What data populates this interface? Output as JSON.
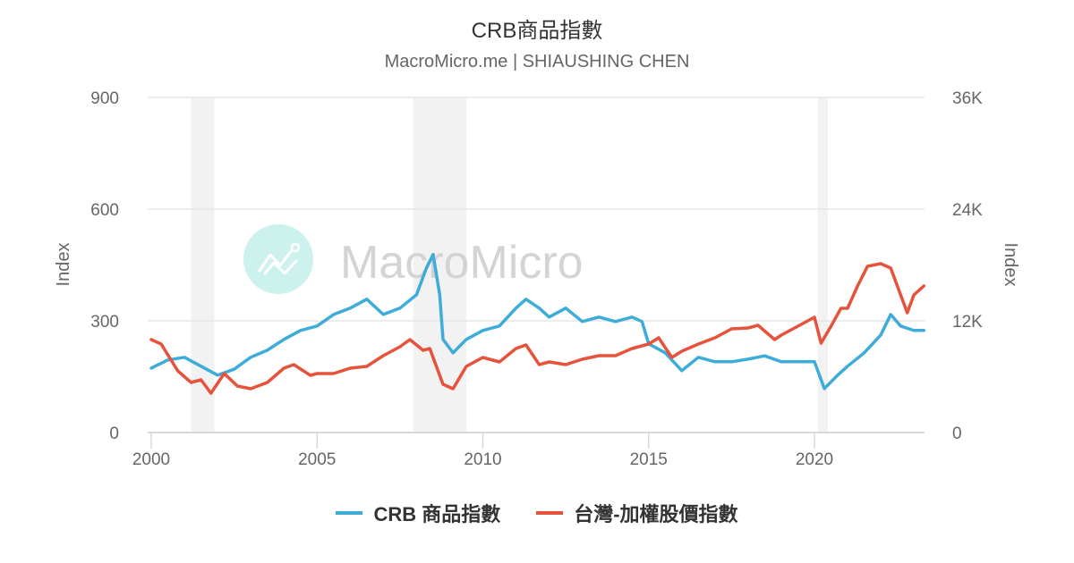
{
  "header": {
    "title": "CRB商品指數",
    "subtitle": "MacroMicro.me | SHIAUSHING CHEN"
  },
  "watermark": {
    "text": "MacroMicro",
    "logo_color": "#c8f0ea"
  },
  "colors": {
    "crb": "#3eacd8",
    "twse": "#e5533c",
    "grid": "#e6e6e6",
    "recession": "#f2f2f2"
  },
  "legend": {
    "items": [
      {
        "label": "CRB 商品指數",
        "color": "#3eacd8"
      },
      {
        "label": "台灣-加權股價指數",
        "color": "#e5533c"
      }
    ]
  },
  "axes": {
    "left": {
      "title": "Index",
      "ticks": [
        "0",
        "300",
        "600",
        "900"
      ]
    },
    "right": {
      "title": "Index",
      "ticks": [
        "0",
        "12K",
        "24K",
        "36K"
      ]
    },
    "x": {
      "ticks": [
        "2000",
        "2005",
        "2010",
        "2015",
        "2020"
      ]
    }
  },
  "chart_data": {
    "type": "line",
    "title": "CRB商品指數",
    "subtitle": "MacroMicro.me | SHIAUSHING CHEN",
    "xlabel": "",
    "ylabel": "Index",
    "ylabel_right": "Index",
    "ylim": [
      0,
      900
    ],
    "ylim_right": [
      0,
      36000
    ],
    "x_ticks": [
      2000,
      2005,
      2010,
      2015,
      2020
    ],
    "grid": true,
    "legend_position": "bottom",
    "recession_bands": [
      [
        2001.2,
        2001.9
      ],
      [
        2007.9,
        2009.5
      ],
      [
        2020.1,
        2020.4
      ]
    ],
    "series": [
      {
        "name": "CRB 商品指數",
        "axis": "left",
        "color": "#3eacd8",
        "x": [
          2000.0,
          2000.5,
          2001.0,
          2001.5,
          2002.0,
          2002.5,
          2003.0,
          2003.5,
          2004.0,
          2004.5,
          2005.0,
          2005.5,
          2006.0,
          2006.5,
          2007.0,
          2007.5,
          2008.0,
          2008.3,
          2008.5,
          2008.7,
          2008.8,
          2009.1,
          2009.5,
          2010.0,
          2010.5,
          2011.0,
          2011.3,
          2011.7,
          2012.0,
          2012.5,
          2013.0,
          2013.5,
          2014.0,
          2014.5,
          2014.8,
          2015.0,
          2015.5,
          2016.0,
          2016.5,
          2017.0,
          2017.5,
          2018.0,
          2018.5,
          2019.0,
          2019.5,
          2020.0,
          2020.3,
          2020.7,
          2021.0,
          2021.5,
          2022.0,
          2022.3,
          2022.6,
          2023.0,
          2023.3
        ],
        "values": [
          173,
          195,
          202,
          178,
          154,
          170,
          202,
          221,
          250,
          274,
          286,
          317,
          334,
          358,
          317,
          334,
          370,
          442,
          478,
          370,
          250,
          214,
          250,
          274,
          286,
          334,
          358,
          334,
          310,
          334,
          298,
          310,
          298,
          310,
          298,
          238,
          214,
          166,
          202,
          190,
          190,
          197,
          206,
          190,
          190,
          190,
          118,
          154,
          178,
          214,
          262,
          317,
          286,
          274,
          274
        ]
      },
      {
        "name": "台灣-加權股價指數",
        "axis": "right",
        "color": "#e5533c",
        "x": [
          2000.0,
          2000.3,
          2000.8,
          2001.2,
          2001.5,
          2001.8,
          2002.2,
          2002.6,
          2003.0,
          2003.5,
          2004.0,
          2004.3,
          2004.8,
          2005.0,
          2005.5,
          2006.0,
          2006.5,
          2007.0,
          2007.5,
          2007.8,
          2008.2,
          2008.4,
          2008.8,
          2009.1,
          2009.5,
          2010.0,
          2010.5,
          2011.0,
          2011.3,
          2011.7,
          2012.0,
          2012.5,
          2013.0,
          2013.5,
          2014.0,
          2014.5,
          2015.0,
          2015.3,
          2015.7,
          2016.0,
          2016.5,
          2017.0,
          2017.5,
          2018.0,
          2018.3,
          2018.8,
          2019.0,
          2019.5,
          2020.0,
          2020.2,
          2020.5,
          2020.8,
          2021.0,
          2021.3,
          2021.6,
          2022.0,
          2022.3,
          2022.6,
          2022.8,
          2023.0,
          2023.3
        ],
        "values": [
          9984,
          9504,
          6624,
          5376,
          5664,
          4224,
          6336,
          4992,
          4704,
          5376,
          6912,
          7296,
          6144,
          6336,
          6336,
          6912,
          7104,
          8256,
          9216,
          9984,
          8832,
          9024,
          5184,
          4704,
          7104,
          8064,
          7584,
          9024,
          9408,
          7296,
          7584,
          7296,
          7872,
          8256,
          8256,
          9024,
          9504,
          10176,
          8064,
          8736,
          9504,
          10176,
          11136,
          11232,
          11520,
          9984,
          10464,
          11424,
          12384,
          9600,
          11424,
          13344,
          13344,
          15744,
          17856,
          18144,
          17664,
          14784,
          12864,
          14784,
          15744
        ]
      }
    ]
  }
}
